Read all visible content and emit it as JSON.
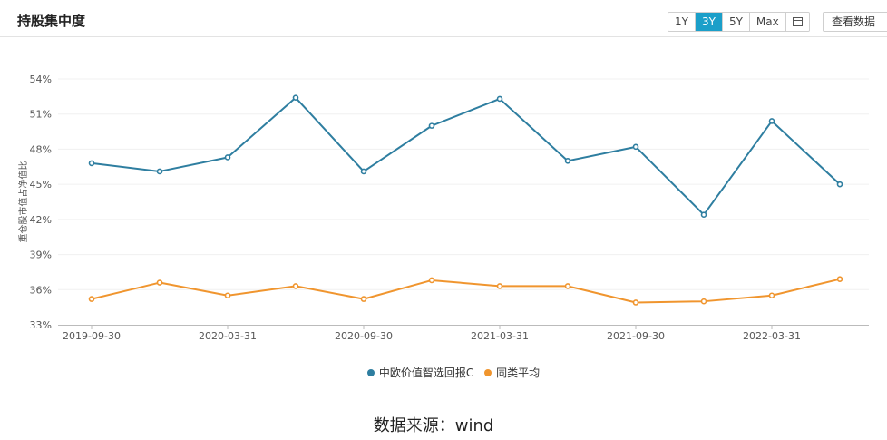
{
  "header": {
    "title": "持股集中度",
    "range_buttons": [
      "1Y",
      "3Y",
      "5Y",
      "Max"
    ],
    "active_range": "3Y",
    "calendar_icon": "calendar-icon",
    "view_data_label": "查看数据"
  },
  "footer": {
    "source": "数据来源：wind"
  },
  "colors": {
    "series1": "#2e7ea0",
    "series2": "#f0952e",
    "active_button": "#1b9fc9"
  },
  "chart_data": {
    "type": "line",
    "ylabel": "重仓股市值占净值比",
    "xlabel": "",
    "ylim": [
      33,
      54
    ],
    "yticks": [
      33,
      36,
      39,
      42,
      45,
      48,
      51,
      54
    ],
    "y_tick_suffix": "%",
    "x": [
      "2019-09-30",
      "2019-12-31",
      "2020-03-31",
      "2020-06-30",
      "2020-09-30",
      "2020-12-31",
      "2021-03-31",
      "2021-06-30",
      "2021-09-30",
      "2021-12-31",
      "2022-03-31",
      "2022-06-30"
    ],
    "xtick_labels": [
      "2019-09-30",
      "2020-03-31",
      "2020-09-30",
      "2021-03-31",
      "2021-09-30",
      "2022-03-31"
    ],
    "series": [
      {
        "name": "中欧价值智选回报C",
        "values": [
          46.8,
          46.1,
          47.3,
          52.4,
          46.1,
          50.0,
          52.3,
          47.0,
          48.2,
          42.4,
          50.4,
          45.0
        ]
      },
      {
        "name": "同类平均",
        "values": [
          35.2,
          36.6,
          35.5,
          36.3,
          35.2,
          36.8,
          36.3,
          36.3,
          34.9,
          35.0,
          35.5,
          36.9
        ]
      }
    ],
    "grid": true,
    "legend": "bottom-center"
  }
}
